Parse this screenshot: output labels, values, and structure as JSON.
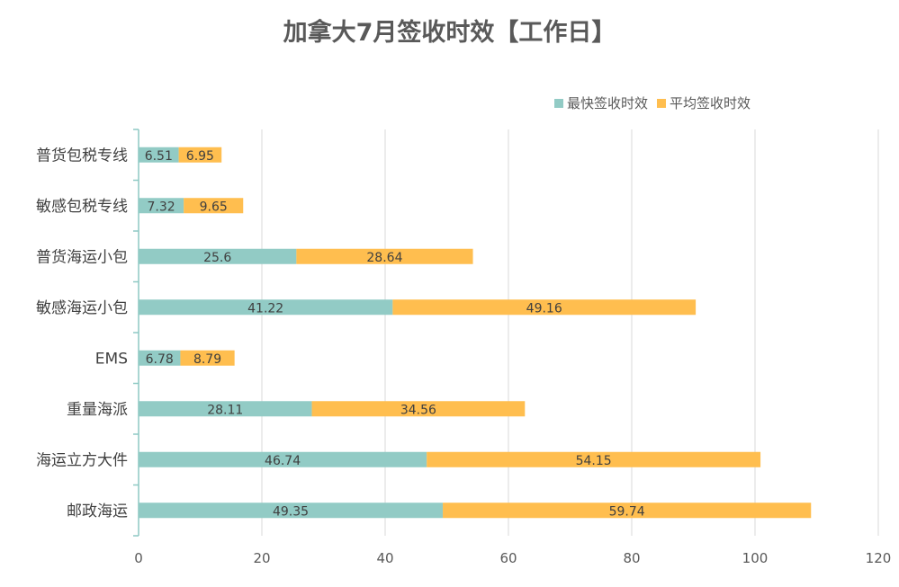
{
  "chart_data": {
    "type": "bar",
    "orientation": "horizontal",
    "stacked": true,
    "title": "加拿大7月签收时效【工作日】",
    "categories": [
      "普货包税专线",
      "敏感包税专线",
      "普货海运小包",
      "敏感海运小包",
      "EMS",
      "重量海派",
      "海运立方大件",
      "邮政海运"
    ],
    "series": [
      {
        "name": "最快签收时效",
        "color": "#92CBC5",
        "values": [
          6.51,
          7.32,
          25.6,
          41.22,
          6.78,
          28.11,
          46.74,
          49.35
        ]
      },
      {
        "name": "平均签收时效",
        "color": "#FFBE4F",
        "values": [
          6.95,
          9.65,
          28.64,
          49.16,
          8.79,
          34.56,
          54.15,
          59.74
        ]
      }
    ],
    "xlim": [
      0,
      120
    ],
    "xticks": [
      0,
      20,
      40,
      60,
      80,
      100,
      120
    ],
    "grid": true,
    "legend_position": "top-right",
    "value_labels": true
  }
}
